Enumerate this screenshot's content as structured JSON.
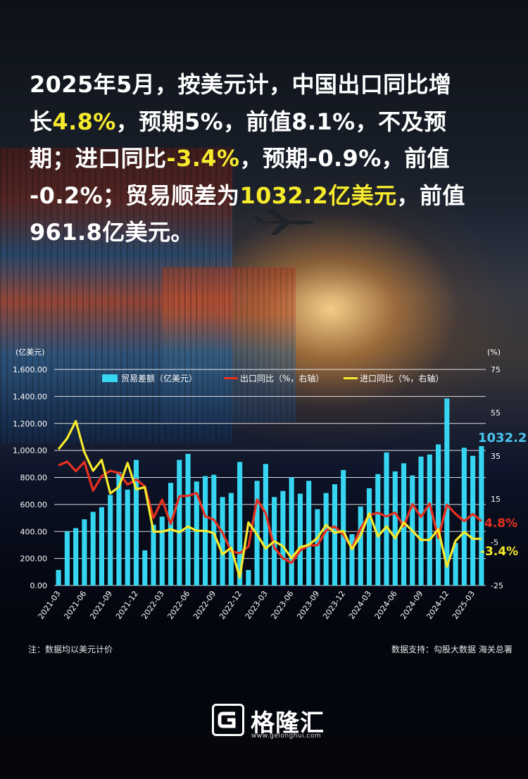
{
  "headline": {
    "l1": "2025年5月，按美元计，中国出口同比增",
    "l2a": "长",
    "l2b": "4.8%",
    "l2c": "，预期5%，前值8.1%，不及预",
    "l3a": "期；进口同比",
    "l3b": "-3.4%",
    "l3c": "，预期-0.9%，前值",
    "l4a": "-0.2%；贸易顺差为",
    "l4b": "1032.2亿美元",
    "l4c": "，前值",
    "l5": "961.8亿美元。"
  },
  "chart_data": {
    "type": "bar",
    "left_unit": "(亿美元)",
    "right_unit": "(%)",
    "left_ticks": [
      "0.00",
      "200.00",
      "400.00",
      "600.00",
      "800.00",
      "1,000.00",
      "1,200.00",
      "1,400.00",
      "1,600.00"
    ],
    "right_ticks": [
      "-25",
      "-5",
      "15",
      "35",
      "55",
      "75"
    ],
    "ylim_left": [
      0,
      1600
    ],
    "ylim_right": [
      -25,
      75
    ],
    "x_tick_labels": [
      "2021-03",
      "2021-06",
      "2021-09",
      "2021-12",
      "2022-03",
      "2022-06",
      "2022-09",
      "2022-12",
      "2023-03",
      "2023-06",
      "2023-09",
      "2023-12",
      "2024-03",
      "2024-06",
      "2024-09",
      "2024-12",
      "2025-03"
    ],
    "legend": [
      "贸易差额（亿美元）",
      "出口同比（%，右轴）",
      "进口同比（%，右轴）"
    ],
    "series": [
      {
        "name": "贸易差额（亿美元）",
        "axis": "left",
        "kind": "bar",
        "color": "#36d6f2",
        "values": [
          115,
          400,
          425,
          490,
          545,
          580,
          670,
          840,
          710,
          930,
          260,
          450,
          510,
          760,
          930,
          975,
          770,
          810,
          820,
          655,
          685,
          915,
          115,
          775,
          900,
          655,
          700,
          800,
          680,
          775,
          565,
          685,
          750,
          855,
          380,
          585,
          720,
          825,
          985,
          845,
          905,
          815,
          955,
          970,
          1045,
          1385,
          315,
          1020,
          960,
          1032
        ]
      },
      {
        "name": "出口同比（%，右轴）",
        "axis": "right",
        "kind": "line",
        "color": "#e8301f",
        "values": [
          30.6,
          32.3,
          27.9,
          32.2,
          18.9,
          25.6,
          28.1,
          27.1,
          21.7,
          24.1,
          20.9,
          6.2,
          14.7,
          3.5,
          16.3,
          16.5,
          17.8,
          7,
          5.5,
          -0.6,
          -9.1,
          -10.1,
          -7,
          14.8,
          8.5,
          -7.5,
          -12.4,
          -14.5,
          -8.8,
          -6.4,
          -6.4,
          0.5,
          2.3,
          -1.5,
          -7.6,
          1.5,
          7.6,
          8.6,
          7,
          8.7,
          2.4,
          12.7,
          6.7,
          13,
          -3,
          12.4,
          8.1,
          4.8,
          8.1,
          4.8
        ]
      },
      {
        "name": "进口同比（%，右轴）",
        "axis": "right",
        "kind": "line",
        "color": "#f6ea2c",
        "values": [
          38.1,
          43.1,
          51.1,
          36.7,
          28.1,
          33.1,
          17.6,
          20.6,
          31.7,
          19.5,
          20.5,
          0,
          -0.1,
          1,
          -0.3,
          2.3,
          0.3,
          0.3,
          -0.7,
          -10.6,
          -7.5,
          -21.3,
          4.2,
          -1.4,
          -7.9,
          -4.5,
          -6.8,
          -12.4,
          -7.3,
          -6.2,
          -3,
          3,
          -0.6,
          0.2,
          -8.2,
          -1.9,
          8.4,
          -2.3,
          2.3,
          -3.1,
          4.2,
          0.3,
          -3.9,
          -3.9,
          1,
          -16.3,
          -4.3,
          -0.2,
          -3.4,
          -3.4
        ]
      }
    ],
    "end_label_bars": "1032.2",
    "end_label_export": "4.8%",
    "end_label_import": "-3.4%"
  },
  "footer": {
    "note": "注：数据均以美元计价",
    "source": "数据支持：勾股大数据 海关总署",
    "brand": "格隆汇",
    "url": "www.gelonghui.com"
  }
}
